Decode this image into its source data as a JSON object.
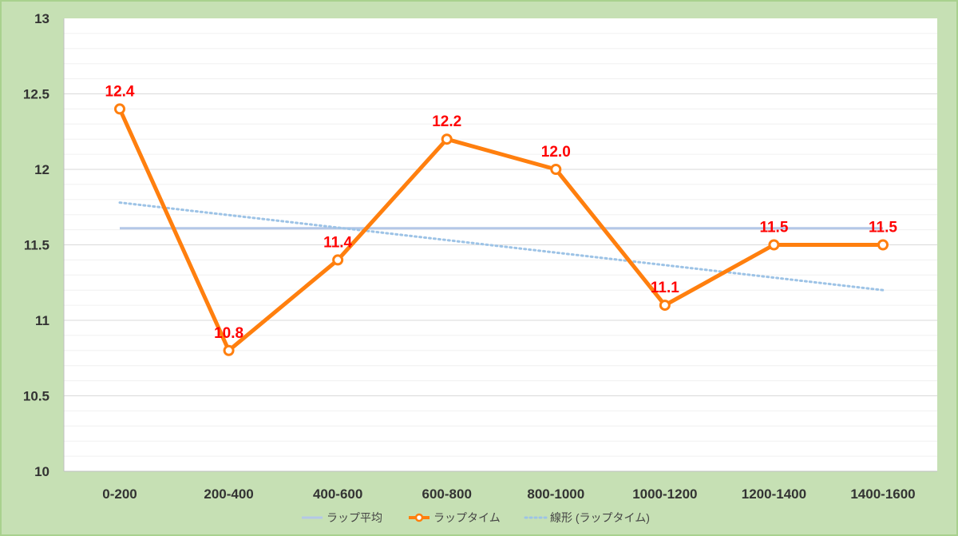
{
  "chart_data": {
    "type": "line",
    "categories": [
      "0-200",
      "200-400",
      "400-600",
      "600-800",
      "800-1000",
      "1000-1200",
      "1200-1400",
      "1400-1600"
    ],
    "series": [
      {
        "name": "ラップ平均",
        "values": [
          11.61,
          11.61,
          11.61,
          11.61,
          11.61,
          11.61,
          11.61,
          11.61
        ],
        "color": "#b4c7e7",
        "style": "solid"
      },
      {
        "name": "ラップタイム",
        "values": [
          12.4,
          10.8,
          11.4,
          12.2,
          12.0,
          11.1,
          11.5,
          11.5
        ],
        "labels": [
          "12.4",
          "10.8",
          "11.4",
          "12.2",
          "12.0",
          "11.1",
          "11.5",
          "11.5"
        ],
        "color": "#ff7f0e",
        "style": "solid-markers"
      },
      {
        "name": "線形 (ラップタイム)",
        "values": [
          11.78,
          11.7,
          11.61,
          11.53,
          11.45,
          11.37,
          11.28,
          11.2
        ],
        "color": "#9dc3e6",
        "style": "dotted"
      }
    ],
    "yticks": [
      "10",
      "10.5",
      "11",
      "11.5",
      "12",
      "12.5",
      "13"
    ],
    "ylim": [
      10,
      13
    ],
    "grid": true,
    "legend": "bottom",
    "label_color": "#ff0000"
  }
}
